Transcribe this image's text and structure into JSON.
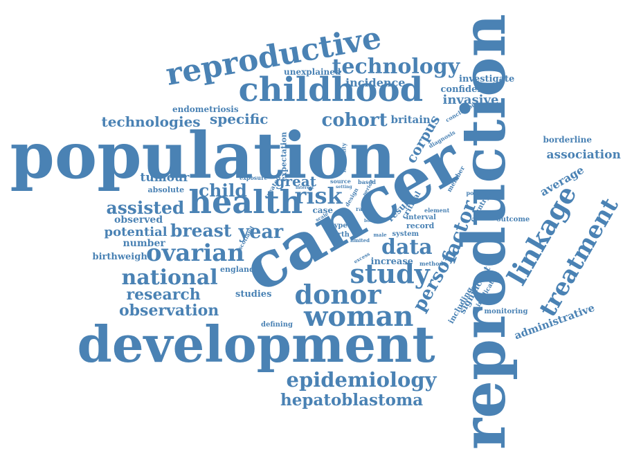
{
  "word_cloud": {
    "color": "#4a82b4",
    "words": [
      {
        "text": "population",
        "rotate": 0
      },
      {
        "text": "development",
        "rotate": 0
      },
      {
        "text": "reproduction",
        "rotate": -90
      },
      {
        "text": "cancer",
        "rotate": -30
      },
      {
        "text": "reproductive",
        "rotate": -10
      },
      {
        "text": "childhood",
        "rotate": 0
      },
      {
        "text": "health",
        "rotate": 0
      },
      {
        "text": "woman",
        "rotate": 0
      },
      {
        "text": "donor",
        "rotate": 0
      },
      {
        "text": "study",
        "rotate": 0
      },
      {
        "text": "ovarian",
        "rotate": 0
      },
      {
        "text": "national",
        "rotate": 0
      },
      {
        "text": "technology",
        "rotate": 0
      },
      {
        "text": "epidemiology",
        "rotate": 0
      },
      {
        "text": "hepatoblastoma",
        "rotate": 0
      },
      {
        "text": "linkage",
        "rotate": -60
      },
      {
        "text": "treatment",
        "rotate": -60
      },
      {
        "text": "cohort",
        "rotate": 0
      },
      {
        "text": "breast",
        "rotate": 0
      },
      {
        "text": "year",
        "rotate": 0
      },
      {
        "text": "data",
        "rotate": 0
      },
      {
        "text": "risk",
        "rotate": 0
      },
      {
        "text": "child",
        "rotate": 0
      },
      {
        "text": "assisted",
        "rotate": 0
      },
      {
        "text": "research",
        "rotate": 0
      },
      {
        "text": "observation",
        "rotate": 0
      },
      {
        "text": "person",
        "rotate": -60
      },
      {
        "text": "factor",
        "rotate": -70
      },
      {
        "text": "invasive",
        "rotate": 0
      },
      {
        "text": "technologies",
        "rotate": 0
      },
      {
        "text": "specific",
        "rotate": 0
      },
      {
        "text": "potential",
        "rotate": 0
      },
      {
        "text": "association",
        "rotate": 0
      },
      {
        "text": "average",
        "rotate": -30
      },
      {
        "text": "administrative",
        "rotate": -20
      },
      {
        "text": "great",
        "rotate": 0
      },
      {
        "text": "tumour",
        "rotate": 0
      },
      {
        "text": "corpus",
        "rotate": -60
      },
      {
        "text": "incidence",
        "rotate": 0
      },
      {
        "text": "investigate",
        "rotate": 0
      },
      {
        "text": "confidence",
        "rotate": 0
      },
      {
        "text": "britain",
        "rotate": 0
      },
      {
        "text": "endometriosis",
        "rotate": 0
      },
      {
        "text": "unexplained",
        "rotate": 0
      },
      {
        "text": "borderline",
        "rotate": 0
      },
      {
        "text": "observed",
        "rotate": 0
      },
      {
        "text": "number",
        "rotate": 0
      },
      {
        "text": "birthweight",
        "rotate": 0
      },
      {
        "text": "absolute",
        "rotate": 0
      },
      {
        "text": "studies",
        "rotate": 0
      },
      {
        "text": "increase",
        "rotate": 0
      },
      {
        "text": "outcome",
        "rotate": 0
      },
      {
        "text": "monitoring",
        "rotate": 0
      },
      {
        "text": "england",
        "rotate": 0
      },
      {
        "text": "defining",
        "rotate": 0
      },
      {
        "text": "case",
        "rotate": 0
      },
      {
        "text": "birth",
        "rotate": 0
      },
      {
        "text": "type",
        "rotate": 0
      },
      {
        "text": "system",
        "rotate": 0
      },
      {
        "text": "record",
        "rotate": 0
      },
      {
        "text": "interval",
        "rotate": 0
      },
      {
        "text": "element",
        "rotate": 0
      },
      {
        "text": "method",
        "rotate": 0
      },
      {
        "text": "possible",
        "rotate": 0
      },
      {
        "text": "country",
        "rotate": -60
      },
      {
        "text": "member",
        "rotate": -60
      },
      {
        "text": "critical",
        "rotate": -60
      },
      {
        "text": "result",
        "rotate": -45
      },
      {
        "text": "including",
        "rotate": -60
      },
      {
        "text": "significant",
        "rotate": -60
      },
      {
        "text": "implication",
        "rotate": -60
      },
      {
        "text": "expectation",
        "rotate": -90
      },
      {
        "text": "exposure",
        "rotate": 0
      },
      {
        "text": "treated",
        "rotate": -60
      },
      {
        "text": "infertility",
        "rotate": -90
      },
      {
        "text": "scotland",
        "rotate": -60
      },
      {
        "text": "conclusion",
        "rotate": -30
      },
      {
        "text": "diagnosis",
        "rotate": -30
      },
      {
        "text": "interest",
        "rotate": 0
      },
      {
        "text": "source",
        "rotate": 0
      },
      {
        "text": "based",
        "rotate": 0
      },
      {
        "text": "setting",
        "rotate": 0
      },
      {
        "text": "rate",
        "rotate": 0
      },
      {
        "text": "scale",
        "rotate": -30
      },
      {
        "text": "limited",
        "rotate": 0
      },
      {
        "text": "excess",
        "rotate": -30
      },
      {
        "text": "design",
        "rotate": -60
      },
      {
        "text": "period",
        "rotate": -60
      },
      {
        "text": "male",
        "rotate": 0
      },
      {
        "text": "born",
        "rotate": 0
      }
    ]
  }
}
